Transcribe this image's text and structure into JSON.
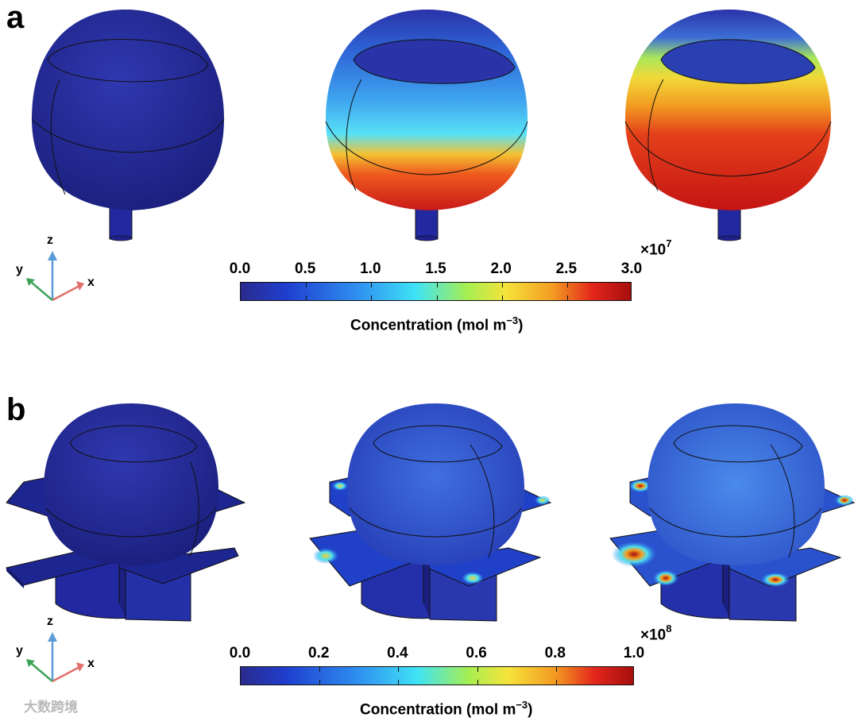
{
  "panels": [
    {
      "letter": "a",
      "colorbar": {
        "ticks": [
          "0.0",
          "0.5",
          "1.0",
          "1.5",
          "2.0",
          "2.5",
          "3.0"
        ],
        "multiplier_base": "×10",
        "multiplier_exp": "7",
        "label": "Concentration (mol m",
        "label_exp": "−3",
        "label_end": ")"
      },
      "axes": {
        "x": "x",
        "y": "y",
        "z": "z"
      }
    },
    {
      "letter": "b",
      "colorbar": {
        "ticks": [
          "0.0",
          "0.2",
          "0.4",
          "0.6",
          "0.8",
          "1.0"
        ],
        "multiplier_base": "×10",
        "multiplier_exp": "8",
        "label": "Concentration (mol m",
        "label_exp": "−3",
        "label_end": ")"
      },
      "axes": {
        "x": "x",
        "y": "y",
        "z": "z"
      }
    }
  ],
  "colormap": [
    "#2a2a8c",
    "#1f3fcf",
    "#2f8ff0",
    "#3fe3f5",
    "#a6ee52",
    "#f6e33a",
    "#f39a22",
    "#e3261b",
    "#a50e0e"
  ],
  "watermark": "大数跨境"
}
